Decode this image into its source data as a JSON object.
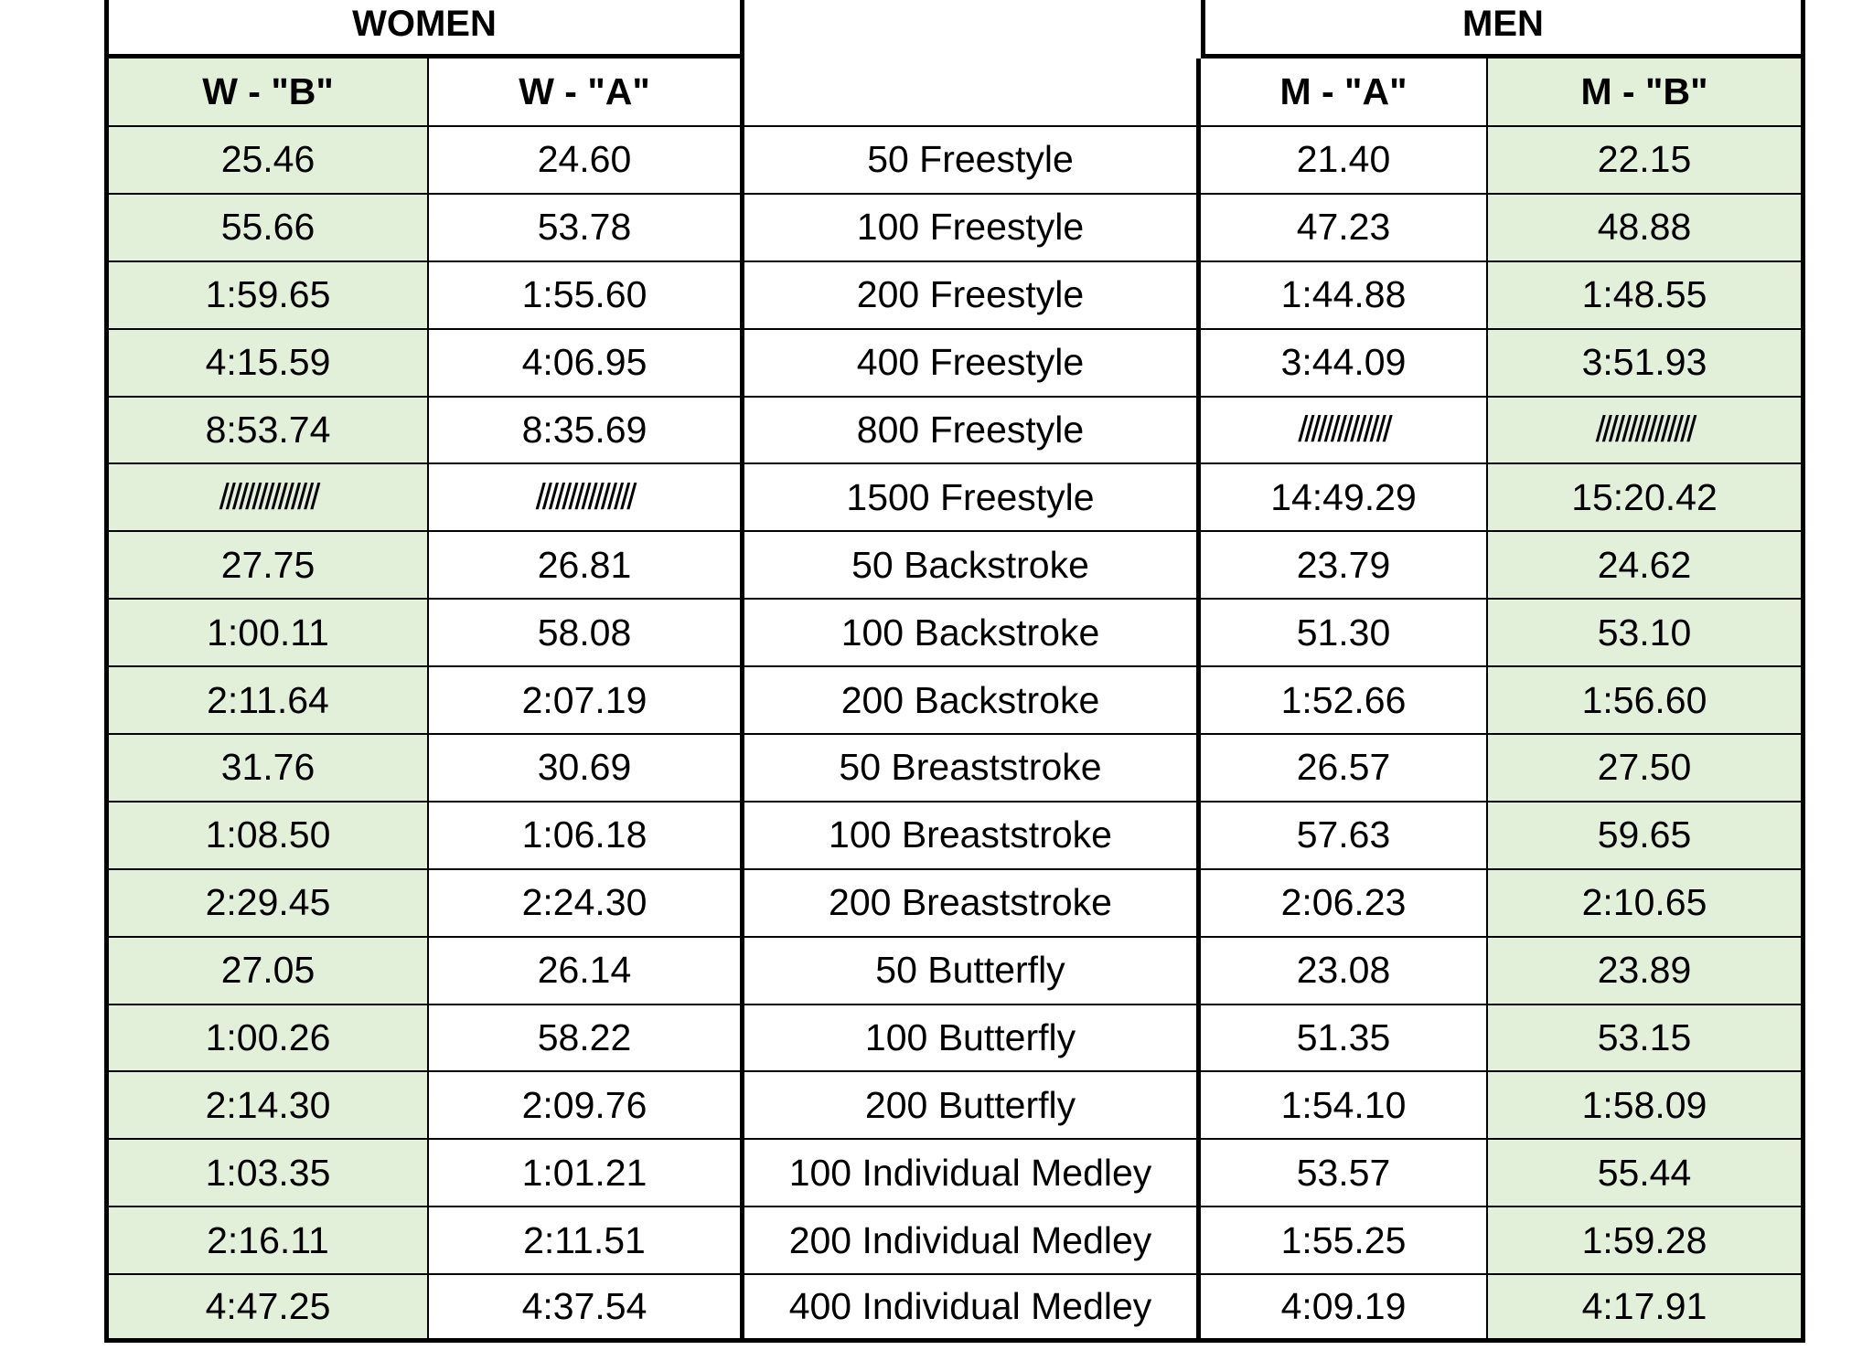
{
  "groups": {
    "women": "WOMEN",
    "men": "MEN"
  },
  "headers": [
    "W - \"B\"",
    "W - \"A\"",
    "",
    "M - \"A\"",
    "M - \"B\""
  ],
  "rows": [
    [
      "25.46",
      "24.60",
      "50 Freestyle",
      "21.40",
      "22.15"
    ],
    [
      "55.66",
      "53.78",
      "100 Freestyle",
      "47.23",
      "48.88"
    ],
    [
      "1:59.65",
      "1:55.60",
      "200 Freestyle",
      "1:44.88",
      "1:48.55"
    ],
    [
      "4:15.59",
      "4:06.95",
      "400 Freestyle",
      "3:44.09",
      "3:51.93"
    ],
    [
      "8:53.74",
      "8:35.69",
      "800 Freestyle",
      "//////////////",
      "///////////////"
    ],
    [
      "///////////////",
      "///////////////",
      "1500 Freestyle",
      "14:49.29",
      "15:20.42"
    ],
    [
      "27.75",
      "26.81",
      "50 Backstroke",
      "23.79",
      "24.62"
    ],
    [
      "1:00.11",
      "58.08",
      "100 Backstroke",
      "51.30",
      "53.10"
    ],
    [
      "2:11.64",
      "2:07.19",
      "200 Backstroke",
      "1:52.66",
      "1:56.60"
    ],
    [
      "31.76",
      "30.69",
      "50 Breaststroke",
      "26.57",
      "27.50"
    ],
    [
      "1:08.50",
      "1:06.18",
      "100 Breaststroke",
      "57.63",
      "59.65"
    ],
    [
      "2:29.45",
      "2:24.30",
      "200 Breaststroke",
      "2:06.23",
      "2:10.65"
    ],
    [
      "27.05",
      "26.14",
      "50 Butterfly",
      "23.08",
      "23.89"
    ],
    [
      "1:00.26",
      "58.22",
      "100 Butterfly",
      "51.35",
      "53.15"
    ],
    [
      "2:14.30",
      "2:09.76",
      "200 Butterfly",
      "1:54.10",
      "1:58.09"
    ],
    [
      "1:03.35",
      "1:01.21",
      "100 Individual Medley",
      "53.57",
      "55.44"
    ],
    [
      "2:16.11",
      "2:11.51",
      "200 Individual Medley",
      "1:55.25",
      "1:59.28"
    ],
    [
      "4:47.25",
      "4:37.54",
      "400 Individual Medley",
      "4:09.19",
      "4:17.91"
    ]
  ],
  "colors": {
    "b_column_fill": "#e2efd9",
    "border": "#000000"
  }
}
